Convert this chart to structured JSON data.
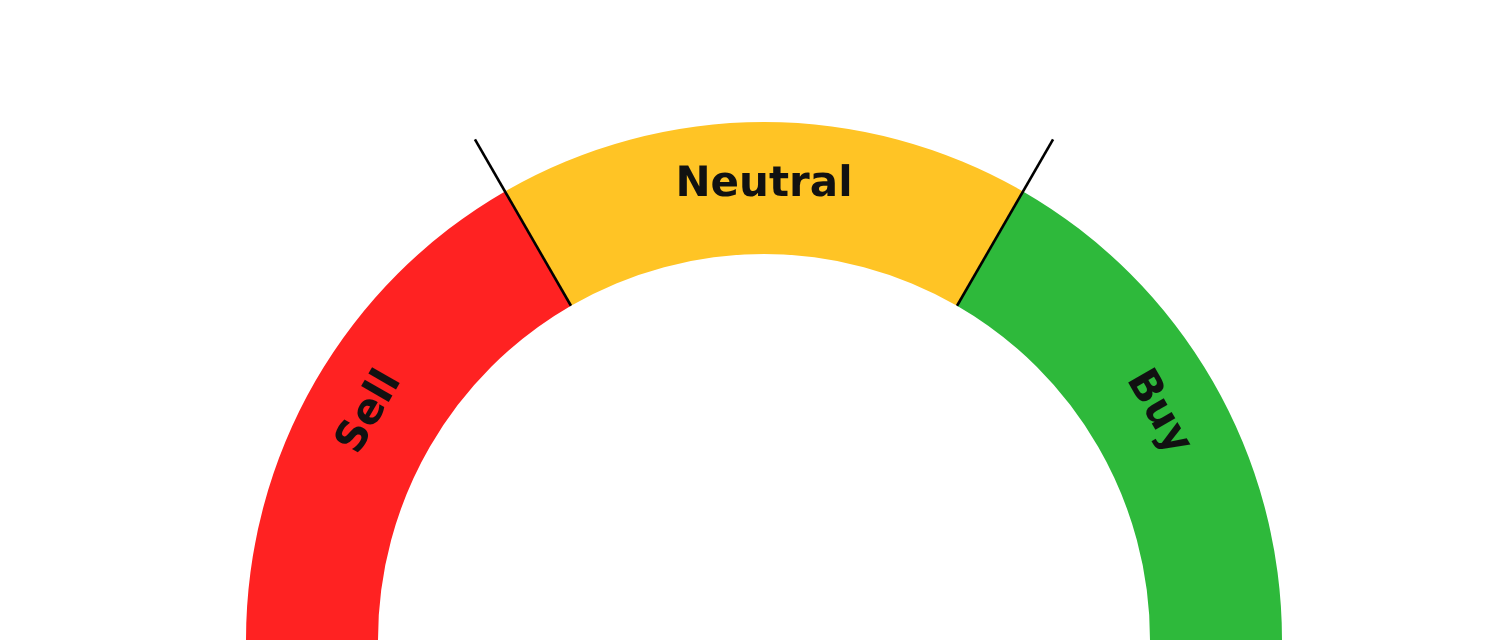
{
  "chart_data": {
    "type": "donut",
    "categories": [
      "Sell",
      "Neutral",
      "Buy"
    ],
    "values": [
      33.33,
      33.34,
      33.33
    ],
    "colors": [
      "#ff2222",
      "#ffc425",
      "#2eb93b"
    ],
    "legend": false
  }
}
